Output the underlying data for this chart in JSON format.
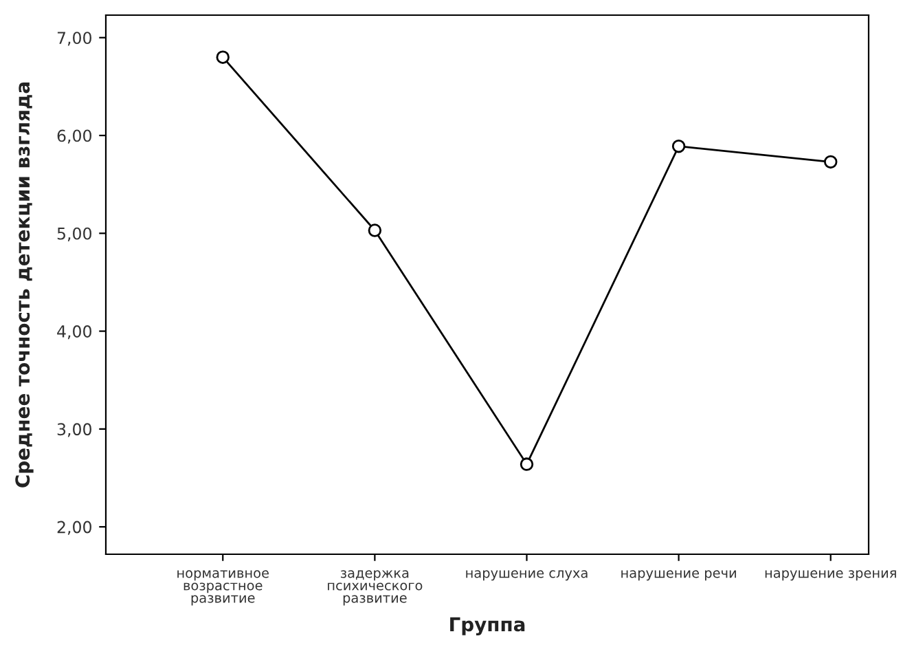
{
  "chart_data": {
    "type": "line",
    "xlabel": "Группа",
    "ylabel": "Среднее точность детекции взгляда",
    "categories": [
      "нормативное\nвозрастное\nразвитие",
      "задержка\nпсихического\nразвитие",
      "нарушение слуха",
      "нарушение речи",
      "нарушение зрения"
    ],
    "series": [
      {
        "color": "#000000",
        "values": [
          6.8,
          5.03,
          2.64,
          5.89,
          5.73
        ]
      }
    ],
    "ylim": [
      1.72,
      7.23
    ],
    "yticks": [
      {
        "value": 2,
        "label": "2,00"
      },
      {
        "value": 3,
        "label": "3,00"
      },
      {
        "value": 4,
        "label": "4,00"
      },
      {
        "value": 5,
        "label": "5,00"
      },
      {
        "value": 6,
        "label": "6,00"
      },
      {
        "value": 7,
        "label": "7,00"
      }
    ],
    "grid": false,
    "legend": false,
    "marker": "circle",
    "line_style": "solid"
  }
}
